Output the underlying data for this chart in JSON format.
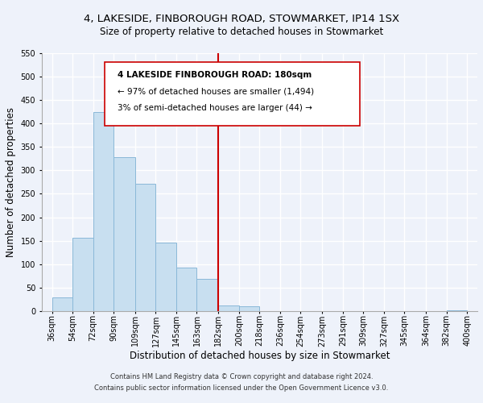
{
  "title": "4, LAKESIDE, FINBOROUGH ROAD, STOWMARKET, IP14 1SX",
  "subtitle": "Size of property relative to detached houses in Stowmarket",
  "xlabel": "Distribution of detached houses by size in Stowmarket",
  "ylabel": "Number of detached properties",
  "bar_left_edges": [
    36,
    54,
    72,
    90,
    109,
    127,
    145,
    163,
    182,
    200,
    218,
    236,
    254,
    273,
    291,
    309,
    327,
    345,
    364,
    382
  ],
  "bar_widths": [
    18,
    18,
    18,
    19,
    18,
    18,
    18,
    19,
    18,
    18,
    18,
    18,
    19,
    18,
    18,
    18,
    18,
    19,
    18,
    18
  ],
  "bar_heights": [
    30,
    157,
    424,
    329,
    271,
    146,
    93,
    69,
    12,
    11,
    0,
    0,
    0,
    0,
    0,
    0,
    0,
    0,
    0,
    2
  ],
  "bar_color": "#c8dff0",
  "bar_edgecolor": "#8ab8d8",
  "vline_x": 182,
  "vline_color": "#cc0000",
  "ylim": [
    0,
    550
  ],
  "yticks": [
    0,
    50,
    100,
    150,
    200,
    250,
    300,
    350,
    400,
    450,
    500,
    550
  ],
  "xtick_labels": [
    "36sqm",
    "54sqm",
    "72sqm",
    "90sqm",
    "109sqm",
    "127sqm",
    "145sqm",
    "163sqm",
    "182sqm",
    "200sqm",
    "218sqm",
    "236sqm",
    "254sqm",
    "273sqm",
    "291sqm",
    "309sqm",
    "327sqm",
    "345sqm",
    "364sqm",
    "382sqm",
    "400sqm"
  ],
  "xtick_positions": [
    36,
    54,
    72,
    90,
    109,
    127,
    145,
    163,
    182,
    200,
    218,
    236,
    254,
    273,
    291,
    309,
    327,
    345,
    364,
    382,
    400
  ],
  "annotation_line1": "4 LAKESIDE FINBOROUGH ROAD: 180sqm",
  "annotation_line2": "← 97% of detached houses are smaller (1,494)",
  "annotation_line3": "3% of semi-detached houses are larger (44) →",
  "footer1": "Contains HM Land Registry data © Crown copyright and database right 2024.",
  "footer2": "Contains public sector information licensed under the Open Government Licence v3.0.",
  "background_color": "#eef2fa",
  "plot_background": "#eef2fa",
  "grid_color": "#ffffff",
  "title_fontsize": 9.5,
  "subtitle_fontsize": 8.5,
  "xlabel_fontsize": 8.5,
  "ylabel_fontsize": 8.5,
  "tick_fontsize": 7,
  "annotation_fontsize": 7.5,
  "footer_fontsize": 6
}
